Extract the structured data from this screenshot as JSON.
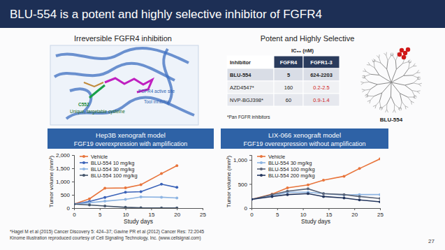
{
  "slide": {
    "title": "BLU-554 is a potent and highly selective inhibitor of FGFR4",
    "left_heading": "Irreversible FGFR4 inhibition",
    "right_heading": "Potent and Highly Selective",
    "structure_labels": [
      "FGFR4 active site",
      "Tool inhibitor",
      "C552",
      "Unique, targetable cysteine"
    ],
    "table": {
      "caption": "IC₅₀ (nM)",
      "header": [
        "Inhibitor",
        "FGFR4",
        "FGFR1-3"
      ],
      "rows": [
        [
          "BLU-554",
          5,
          "624-2203"
        ],
        [
          "AZD4547*",
          160,
          "0.2-2.5"
        ],
        [
          "NVP-BGJ398*",
          60,
          "0.9-1.4"
        ]
      ],
      "note": "*Pan FGFR inhibitors"
    },
    "kinome_label": "BLU-554",
    "footnotes": [
      "*Hagel M et al (2015) Cancer Discovery 5: 424–37; Gavine PR et al (2012) Cancer Res: 72:2045",
      "Kinome illustration reproduced courtesy of Cell Signaling Technology, Inc. (www.cellsignal.com)"
    ],
    "page": "27"
  },
  "chart_data": [
    {
      "type": "line",
      "title": "Hep3B xenograft model",
      "subtitle": "FGF19 overexpression with amplification",
      "x": [
        0,
        3,
        6,
        10,
        13,
        17,
        20
      ],
      "series": [
        {
          "name": "Vehicle",
          "color": "#e8743b",
          "marker": "circle",
          "values": [
            150,
            350,
            750,
            760,
            880,
            1300,
            1600
          ]
        },
        {
          "name": "BLU-554 10 mg/kg",
          "color": "#3a62b8",
          "marker": "circle",
          "values": [
            150,
            250,
            400,
            600,
            620,
            900,
            780
          ]
        },
        {
          "name": "BLU-554 30 mg/kg",
          "color": "#8db4e2",
          "marker": "circle",
          "values": [
            150,
            200,
            260,
            330,
            420,
            410,
            380
          ]
        },
        {
          "name": "BLU-554 100 mg/kg",
          "color": "#44546a",
          "marker": "circle",
          "values": [
            150,
            120,
            80,
            30,
            10,
            5,
            5
          ]
        }
      ],
      "xlim": [
        0,
        25
      ],
      "xticks": [
        0,
        5,
        10,
        15,
        20,
        25
      ],
      "ylim": [
        0,
        2000
      ],
      "yticks": [
        0,
        500,
        {
          "value": 1000,
          "label": "1,000"
        },
        {
          "value": 1500,
          "label": "1,500"
        },
        {
          "value": 2000,
          "label": "2,000"
        }
      ],
      "xlabel": "Study days",
      "ylabel": "Tumor volume (mm³)",
      "legend": "upper left"
    },
    {
      "type": "line",
      "title": "LIX-066 xenograft model",
      "subtitle": "FGF19 overexpression without amplification",
      "x": [
        0,
        4,
        7,
        11,
        14,
        18,
        21,
        25
      ],
      "series": [
        {
          "name": "Vehicle",
          "color": "#e8743b",
          "marker": "circle",
          "values": [
            180,
            290,
            420,
            480,
            580,
            660,
            820,
            1020
          ]
        },
        {
          "name": "BLU-554 30 mg/kg",
          "color": "#8db4e2",
          "marker": "circle",
          "values": [
            180,
            250,
            330,
            330,
            300,
            270,
            280,
            280
          ]
        },
        {
          "name": "BLU-554 100 mg/kg",
          "color": "#5a6478",
          "marker": "circle",
          "values": [
            180,
            280,
            350,
            400,
            300,
            280,
            240,
            200
          ]
        },
        {
          "name": "BLU-554 200 mg/kg",
          "color": "#24365e",
          "marker": "circle",
          "values": [
            180,
            240,
            280,
            300,
            240,
            210,
            170,
            130
          ]
        }
      ],
      "xlim": [
        0,
        25
      ],
      "xticks": [
        0,
        5,
        10,
        15,
        20,
        25
      ],
      "ylim": [
        0,
        1100
      ],
      "yticks": [
        0,
        500,
        {
          "value": 1000,
          "label": "1,000"
        }
      ],
      "xlabel": "Study days",
      "ylabel": "Tumor volume (mm³)",
      "legend": "upper left"
    }
  ]
}
